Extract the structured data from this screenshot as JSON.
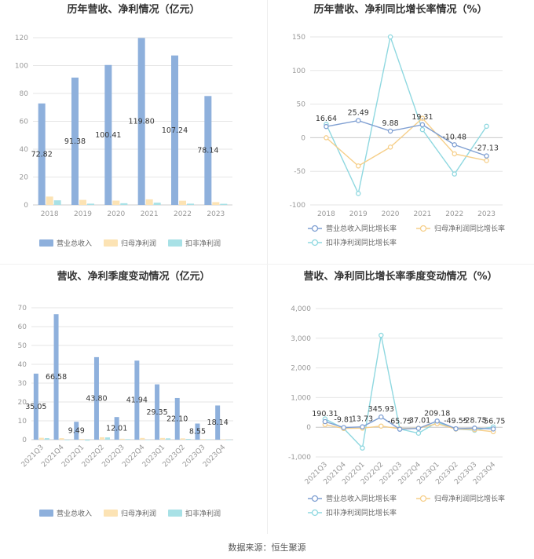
{
  "colors": {
    "revenue": "#8eb0dc",
    "net_profit": "#fce3b4",
    "deducted_profit": "#a8e1e6"
  },
  "source_label": "数据来源：恒生聚源",
  "chart_data": [
    {
      "id": "annual-amount",
      "type": "bar",
      "title": "历年营收、净利情况（亿元）",
      "categories": [
        "2018",
        "2019",
        "2020",
        "2021",
        "2022",
        "2023"
      ],
      "ylim": [
        0,
        120
      ],
      "yticks": [
        0,
        20,
        40,
        60,
        80,
        100,
        120
      ],
      "grid": true,
      "legend_position": "bottom",
      "series": [
        {
          "name": "营业总收入",
          "values": [
            72.82,
            91.38,
            100.41,
            119.8,
            107.24,
            78.14
          ],
          "labels": [
            "72.82",
            "91.38",
            "100.41",
            "119.80",
            "107.24",
            "78.14"
          ]
        },
        {
          "name": "归母净利润",
          "values": [
            6.0,
            3.6,
            3.1,
            4.0,
            3.0,
            2.0
          ]
        },
        {
          "name": "扣非净利润",
          "values": [
            3.3,
            0.9,
            1.2,
            1.6,
            0.9,
            0.8
          ]
        }
      ]
    },
    {
      "id": "annual-growth",
      "type": "line",
      "title": "历年营收、净利同比增长率情况（%）",
      "categories": [
        "2018",
        "2019",
        "2020",
        "2021",
        "2022",
        "2023"
      ],
      "ylim": [
        -100,
        150
      ],
      "yticks": [
        -100,
        -50,
        0,
        50,
        100,
        150
      ],
      "grid": true,
      "legend_position": "bottom",
      "series": [
        {
          "name": "营业总收入同比增长率",
          "values": [
            16.64,
            25.49,
            9.88,
            19.31,
            -10.48,
            -27.13
          ],
          "labels": [
            "16.64",
            "25.49",
            "9.88",
            "19.31",
            "-10.48",
            "-27.13"
          ]
        },
        {
          "name": "归母净利润同比增长率",
          "values": [
            0,
            -42,
            -14,
            29,
            -24,
            -34
          ]
        },
        {
          "name": "扣非净利润同比增长率",
          "values": [
            20,
            -83,
            150,
            12,
            -54,
            17
          ]
        }
      ]
    },
    {
      "id": "quarterly-amount",
      "type": "bar",
      "title": "营收、净利季度变动情况（亿元）",
      "categories": [
        "2021Q3",
        "2021Q4",
        "2022Q1",
        "2022Q2",
        "2022Q3",
        "2022Q4",
        "2023Q1",
        "2023Q2",
        "2023Q3",
        "2023Q4"
      ],
      "ylim": [
        0,
        70
      ],
      "yticks": [
        0,
        10,
        20,
        30,
        40,
        50,
        60,
        70
      ],
      "grid": true,
      "legend_position": "bottom",
      "series": [
        {
          "name": "营业总收入",
          "values": [
            35.05,
            66.58,
            9.49,
            43.8,
            12.01,
            41.94,
            29.35,
            22.1,
            8.55,
            18.14
          ],
          "labels": [
            "35.05",
            "66.58",
            "9.49",
            "43.80",
            "12.01",
            "41.94",
            "29.35",
            "22.10",
            "8.55",
            "18.14"
          ]
        },
        {
          "name": "归母净利润",
          "values": [
            1.0,
            0.8,
            0.4,
            1.3,
            0.5,
            0.9,
            0.9,
            0.7,
            0.3,
            0.2
          ]
        },
        {
          "name": "扣非净利润",
          "values": [
            0.8,
            -0.3,
            -0.5,
            1.2,
            0.3,
            -0.2,
            0.7,
            0.4,
            0.2,
            -0.2
          ]
        }
      ]
    },
    {
      "id": "quarterly-growth",
      "type": "line",
      "title": "营收、净利同比增长率季度变动情况（%）",
      "categories": [
        "2021Q3",
        "2021Q4",
        "2022Q1",
        "2022Q2",
        "2022Q3",
        "2022Q4",
        "2023Q1",
        "2023Q2",
        "2023Q3",
        "2023Q4"
      ],
      "ylim": [
        -1000,
        4000
      ],
      "yticks": [
        -1000,
        0,
        1000,
        2000,
        3000,
        4000
      ],
      "ytick_labels": [
        "-1,000",
        "0",
        "1,000",
        "2,000",
        "3,000",
        "4,000"
      ],
      "grid": true,
      "legend_position": "bottom",
      "series": [
        {
          "name": "营业总收入同比增长率",
          "values": [
            190.31,
            -9.81,
            13.73,
            345.93,
            -65.75,
            -37.01,
            209.18,
            -49.55,
            -28.75,
            -56.75
          ],
          "labels": [
            "190.31",
            "-9.81",
            "13.73",
            "345.93",
            "-65.75",
            "-37.01",
            "209.18",
            "-49.55",
            "-28.75",
            "-56.75"
          ]
        },
        {
          "name": "归母净利润同比增长率",
          "values": [
            90,
            -40,
            -30,
            40,
            -50,
            -30,
            120,
            -60,
            -80,
            -150
          ]
        },
        {
          "name": "扣非净利润同比增长率",
          "values": [
            280,
            -40,
            -700,
            3100,
            -60,
            -200,
            170,
            -60,
            -100,
            10
          ]
        }
      ]
    }
  ]
}
